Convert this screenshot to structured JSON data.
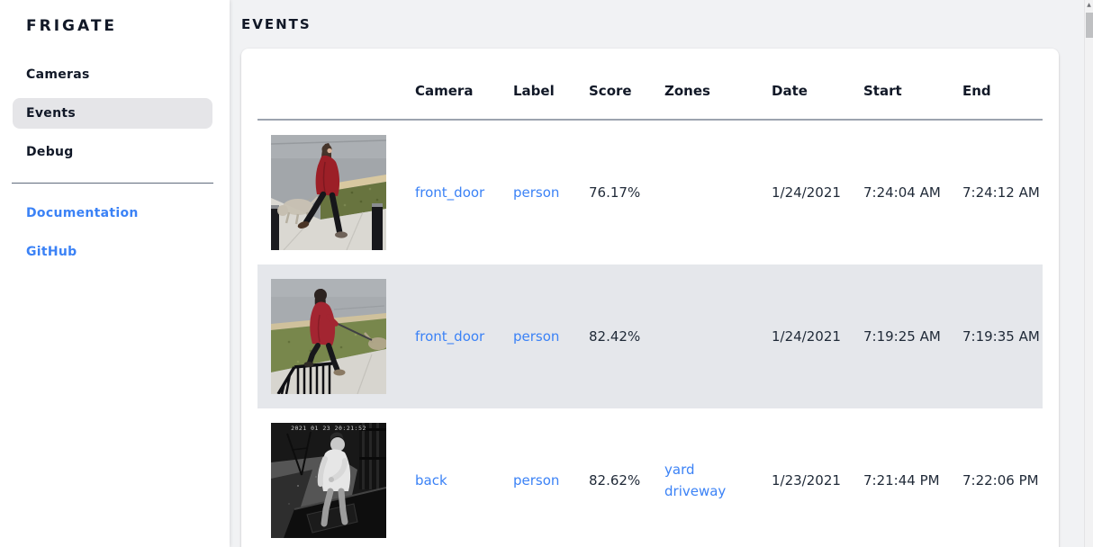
{
  "app": {
    "title": "FRIGATE"
  },
  "sidebar": {
    "items": [
      {
        "label": "Cameras"
      },
      {
        "label": "Events"
      },
      {
        "label": "Debug"
      }
    ],
    "active_item": "Events",
    "links": [
      {
        "label": "Documentation"
      },
      {
        "label": "GitHub"
      }
    ]
  },
  "page": {
    "title": "EVENTS"
  },
  "table": {
    "columns": [
      "",
      "Camera",
      "Label",
      "Score",
      "Zones",
      "Date",
      "Start",
      "End"
    ],
    "rows": [
      {
        "camera": "front_door",
        "label": "person",
        "score": "76.17%",
        "zones": [],
        "date": "1/24/2021",
        "start": "7:24:04 AM",
        "end": "7:24:12 AM",
        "thumb": "front-door-dog-walk",
        "thumbnail_alt": "Daytime snapshot: person in red coat and black pants walking a small dog on a sidewalk between two dark posts",
        "highlighted": false
      },
      {
        "camera": "front_door",
        "label": "person",
        "score": "82.42%",
        "zones": [],
        "date": "1/24/2021",
        "start": "7:19:25 AM",
        "end": "7:19:35 AM",
        "thumb": "front-door-leash",
        "thumbnail_alt": "Daytime snapshot: person in red hooded jacket holding a leash, walking past grass and a black railing",
        "highlighted": true
      },
      {
        "camera": "back",
        "label": "person",
        "score": "82.62%",
        "zones": [
          "yard",
          "driveway"
        ],
        "date": "1/23/2021",
        "start": "7:21:44 PM",
        "end": "7:22:06 PM",
        "thumb": "back-night",
        "thumbnail_alt": "Night black-and-white snapshot: person in light long-sleeve shirt standing beside a dark trailer",
        "thumbnail_overlay": "2021 01 23 20:21:52",
        "highlighted": false
      }
    ]
  },
  "scrollbar": {
    "up_arrow": "▲"
  },
  "colors": {
    "link": "#3b82f6",
    "heading_text": "#111827",
    "body_text": "#1f2937",
    "row_highlight": "#e5e7eb",
    "active_nav_bg": "#e5e5e8",
    "main_bg": "#f1f2f4",
    "card_bg": "#ffffff",
    "header_divider": "#9ca3af"
  }
}
